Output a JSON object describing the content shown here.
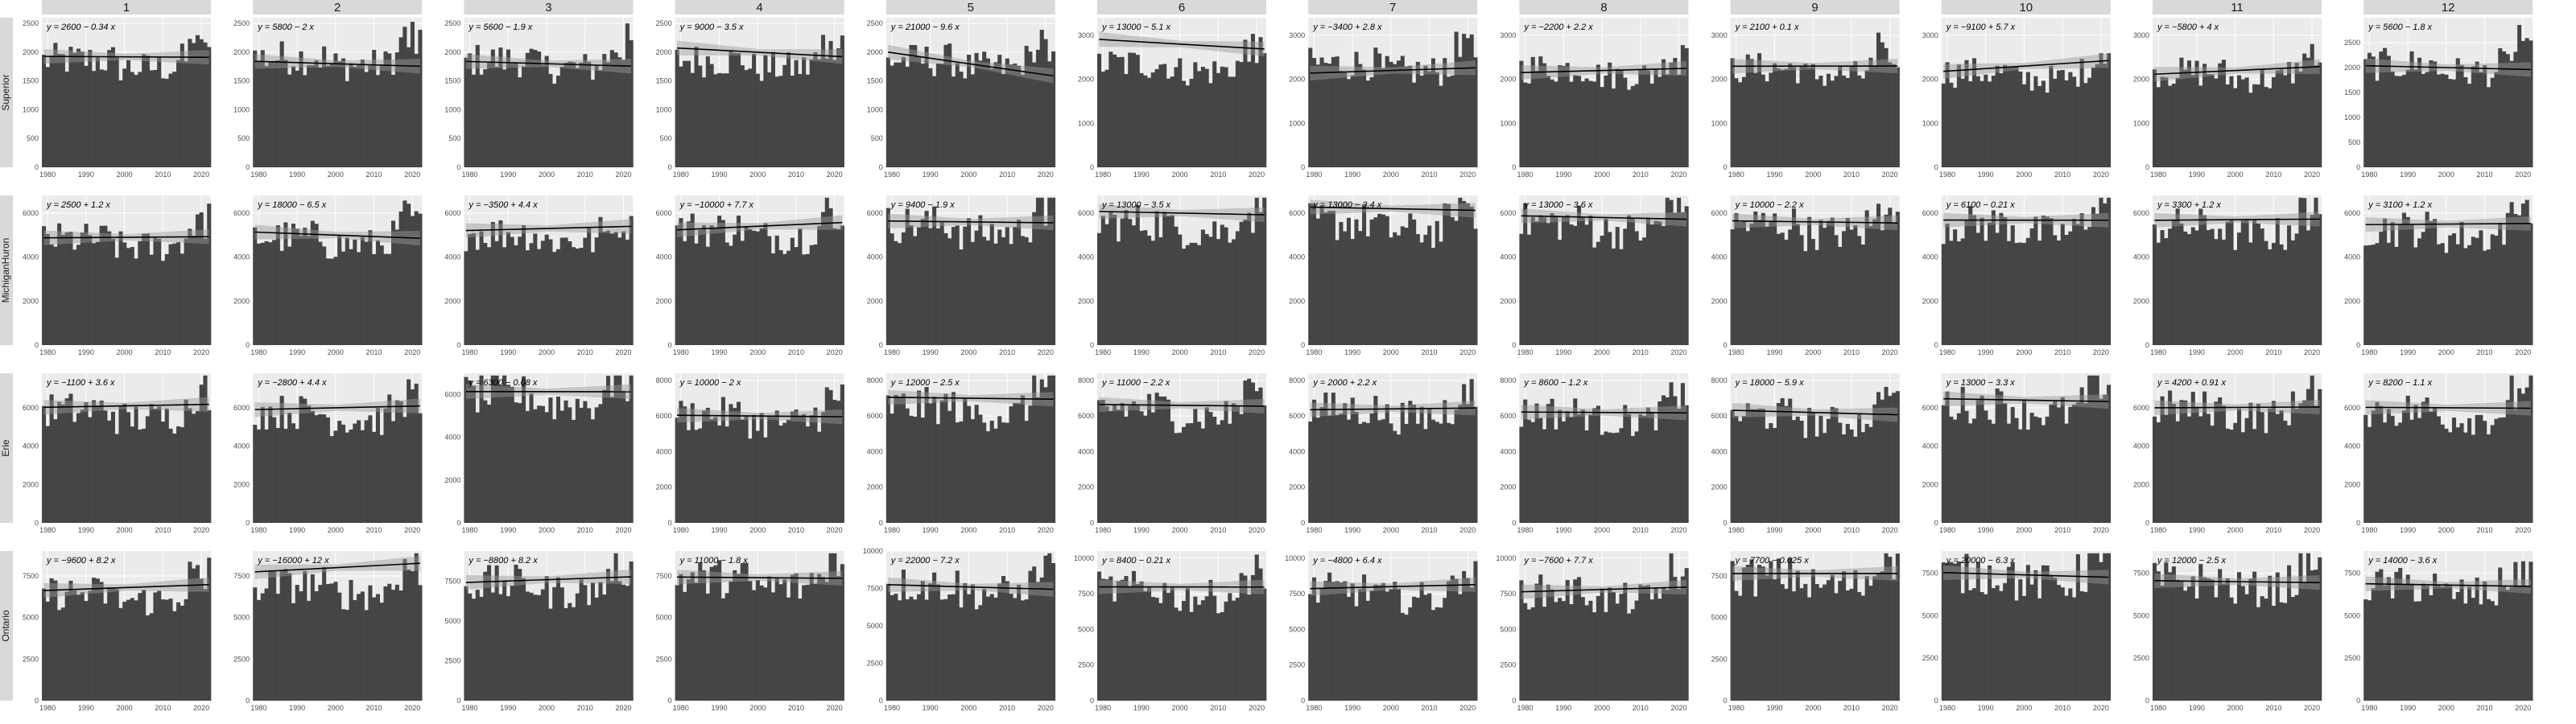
{
  "chart_data": {
    "type": "bar",
    "layout": "facet-grid",
    "column_strips": [
      "1",
      "2",
      "3",
      "4",
      "5",
      "6",
      "7",
      "8",
      "9",
      "10",
      "11",
      "12"
    ],
    "row_strips": [
      "Superior",
      "MichiganHuron",
      "Erie",
      "Ontario"
    ],
    "x_range": [
      1979,
      2022
    ],
    "x_ticks": [
      "1980",
      "1990",
      "2000",
      "2010",
      "2020"
    ],
    "grid": true,
    "colors": {
      "bar": "#454545",
      "panel": "#ebebeb",
      "grid": "#ffffff",
      "trend": "#000000",
      "band": "#999999",
      "strip": "#d9d9d9"
    },
    "panels": [
      [
        {
          "eq": "y = 2600 − 0.34 x",
          "ylim": [
            0,
            2600
          ],
          "yticks": [
            0,
            500,
            1000,
            1500,
            2000,
            2500
          ],
          "base": 1900
        },
        {
          "eq": "y = 5800 − 2 x",
          "ylim": [
            0,
            2600
          ],
          "yticks": [
            0,
            500,
            1000,
            1500,
            2000,
            2500
          ],
          "base": 1950
        },
        {
          "eq": "y = 5600 − 1.9 x",
          "ylim": [
            0,
            2600
          ],
          "yticks": [
            0,
            500,
            1000,
            1500,
            2000,
            2500
          ],
          "base": 1900
        },
        {
          "eq": "y = 9000 − 3.5 x",
          "ylim": [
            0,
            2600
          ],
          "yticks": [
            0,
            500,
            1000,
            1500,
            2000,
            2500
          ],
          "base": 1900
        },
        {
          "eq": "y = 21000 − 9.6 x",
          "ylim": [
            0,
            2600
          ],
          "yticks": [
            0,
            500,
            1000,
            1500,
            2000,
            2500
          ],
          "base": 1900
        },
        {
          "eq": "y = 13000 − 5.1 x",
          "ylim": [
            0,
            3400
          ],
          "yticks": [
            0,
            1000,
            2000,
            3000
          ],
          "base": 2400
        },
        {
          "eq": "y = −3400 + 2.8 x",
          "ylim": [
            0,
            3400
          ],
          "yticks": [
            0,
            1000,
            2000,
            3000
          ],
          "base": 2400
        },
        {
          "eq": "y = −2200 + 2.2 x",
          "ylim": [
            0,
            3400
          ],
          "yticks": [
            0,
            1000,
            2000,
            3000
          ],
          "base": 2300
        },
        {
          "eq": "y = 2100 + 0.1 x",
          "ylim": [
            0,
            3400
          ],
          "yticks": [
            0,
            1000,
            2000,
            3000
          ],
          "base": 2300
        },
        {
          "eq": "y = −9100 + 5.7 x",
          "ylim": [
            0,
            3400
          ],
          "yticks": [
            0,
            1000,
            2000,
            3000
          ],
          "base": 2200
        },
        {
          "eq": "y = −5800 + 4 x",
          "ylim": [
            0,
            3400
          ],
          "yticks": [
            0,
            1000,
            2000,
            3000
          ],
          "base": 2200
        },
        {
          "eq": "y = 5600 − 1.8 x",
          "ylim": [
            0,
            3000
          ],
          "yticks": [
            0,
            500,
            1000,
            1500,
            2000,
            2500
          ],
          "base": 2100
        }
      ],
      [
        {
          "eq": "y = 2500 + 1.2 x",
          "ylim": [
            0,
            6800
          ],
          "yticks": [
            0,
            2000,
            4000,
            6000
          ],
          "base": 4900
        },
        {
          "eq": "y = 18000 − 6.5 x",
          "ylim": [
            0,
            6800
          ],
          "yticks": [
            0,
            2000,
            4000,
            6000
          ],
          "base": 5000
        },
        {
          "eq": "y = −3500 + 4.4 x",
          "ylim": [
            0,
            6800
          ],
          "yticks": [
            0,
            2000,
            4000,
            6000
          ],
          "base": 5200
        },
        {
          "eq": "y = −10000 + 7.7 x",
          "ylim": [
            0,
            6800
          ],
          "yticks": [
            0,
            2000,
            4000,
            6000
          ],
          "base": 5400
        },
        {
          "eq": "y = 9400 − 1.9 x",
          "ylim": [
            0,
            6800
          ],
          "yticks": [
            0,
            2000,
            4000,
            6000
          ],
          "base": 5600
        },
        {
          "eq": "y = 13000 − 3.5 x",
          "ylim": [
            0,
            6800
          ],
          "yticks": [
            0,
            2000,
            4000,
            6000
          ],
          "base": 5700
        },
        {
          "eq": "y = 13000 − 3.4 x",
          "ylim": [
            0,
            6800
          ],
          "yticks": [
            0,
            2000,
            4000,
            6000
          ],
          "base": 5700
        },
        {
          "eq": "y = 13000 − 3.6 x",
          "ylim": [
            0,
            6800
          ],
          "yticks": [
            0,
            2000,
            4000,
            6000
          ],
          "base": 5700
        },
        {
          "eq": "y = 10000 − 2.2 x",
          "ylim": [
            0,
            6800
          ],
          "yticks": [
            0,
            2000,
            4000,
            6000
          ],
          "base": 5600
        },
        {
          "eq": "y = 6100 − 0.21 x",
          "ylim": [
            0,
            6800
          ],
          "yticks": [
            0,
            2000,
            4000,
            6000
          ],
          "base": 5600
        },
        {
          "eq": "y = 3300 + 1.2 x",
          "ylim": [
            0,
            6800
          ],
          "yticks": [
            0,
            2000,
            4000,
            6000
          ],
          "base": 5500
        },
        {
          "eq": "y = 3100 + 1.2 x",
          "ylim": [
            0,
            6800
          ],
          "yticks": [
            0,
            2000,
            4000,
            6000
          ],
          "base": 5400
        }
      ],
      [
        {
          "eq": "y = −1100 + 3.6 x",
          "ylim": [
            0,
            7800
          ],
          "yticks": [
            0,
            2000,
            4000,
            6000
          ],
          "base": 6000
        },
        {
          "eq": "y = −2800 + 4.4 x",
          "ylim": [
            0,
            7800
          ],
          "yticks": [
            0,
            2000,
            4000,
            6000
          ],
          "base": 5900
        },
        {
          "eq": "y = 6300 − 0.08 x",
          "ylim": [
            0,
            7000
          ],
          "yticks": [
            0,
            2000,
            4000,
            6000
          ],
          "base": 6100
        },
        {
          "eq": "y = 10000 − 2 x",
          "ylim": [
            0,
            8400
          ],
          "yticks": [
            0,
            2000,
            4000,
            6000,
            8000
          ],
          "base": 6200
        },
        {
          "eq": "y = 12000 − 2.5 x",
          "ylim": [
            0,
            8400
          ],
          "yticks": [
            0,
            2000,
            4000,
            6000,
            8000
          ],
          "base": 6700
        },
        {
          "eq": "y = 11000 − 2.2 x",
          "ylim": [
            0,
            8400
          ],
          "yticks": [
            0,
            2000,
            4000,
            6000,
            8000
          ],
          "base": 6600
        },
        {
          "eq": "y = 2000 + 2.2 x",
          "ylim": [
            0,
            8400
          ],
          "yticks": [
            0,
            2000,
            4000,
            6000,
            8000
          ],
          "base": 6500
        },
        {
          "eq": "y = 8600 − 1.2 x",
          "ylim": [
            0,
            8400
          ],
          "yticks": [
            0,
            2000,
            4000,
            6000,
            8000
          ],
          "base": 6300
        },
        {
          "eq": "y = 18000 − 5.9 x",
          "ylim": [
            0,
            8400
          ],
          "yticks": [
            0,
            2000,
            4000,
            6000,
            8000
          ],
          "base": 6200
        },
        {
          "eq": "y = 13000 − 3.3 x",
          "ylim": [
            0,
            7800
          ],
          "yticks": [
            0,
            2000,
            4000,
            6000
          ],
          "base": 6300
        },
        {
          "eq": "y = 4200 + 0.91 x",
          "ylim": [
            0,
            7800
          ],
          "yticks": [
            0,
            2000,
            4000,
            6000
          ],
          "base": 6100
        },
        {
          "eq": "y = 8200 − 1.1 x",
          "ylim": [
            0,
            7800
          ],
          "yticks": [
            0,
            2000,
            4000,
            6000
          ],
          "base": 6000
        }
      ],
      [
        {
          "eq": "y = −9600 + 8.2 x",
          "ylim": [
            0,
            9000
          ],
          "yticks": [
            0,
            2500,
            5000,
            7500
          ],
          "base": 6600
        },
        {
          "eq": "y = −16000 + 12 x",
          "ylim": [
            0,
            9000
          ],
          "yticks": [
            0,
            2500,
            5000,
            7500
          ],
          "base": 7100
        },
        {
          "eq": "y = −8800 + 8.2 x",
          "ylim": [
            0,
            9400
          ],
          "yticks": [
            0,
            2500,
            5000,
            7500
          ],
          "base": 7500
        },
        {
          "eq": "y = 11000 − 1.8 x",
          "ylim": [
            0,
            9000
          ],
          "yticks": [
            0,
            2500,
            5000,
            7500
          ],
          "base": 7500
        },
        {
          "eq": "y = 22000 − 7.2 x",
          "ylim": [
            0,
            10000
          ],
          "yticks": [
            0,
            2500,
            5000,
            7500,
            10000
          ],
          "base": 7900
        },
        {
          "eq": "y = 8400 − 0.21 x",
          "ylim": [
            0,
            10500
          ],
          "yticks": [
            0,
            2500,
            5000,
            7500,
            10000
          ],
          "base": 8000
        },
        {
          "eq": "y = −4800 + 6.4 x",
          "ylim": [
            0,
            10500
          ],
          "yticks": [
            0,
            2500,
            5000,
            7500,
            10000
          ],
          "base": 7900
        },
        {
          "eq": "y = −7600 + 7.7 x",
          "ylim": [
            0,
            10500
          ],
          "yticks": [
            0,
            2500,
            5000,
            7500,
            10000
          ],
          "base": 7800
        },
        {
          "eq": "y = 7700 − 0.025 x",
          "ylim": [
            0,
            9000
          ],
          "yticks": [
            0,
            2500,
            5000,
            7500
          ],
          "base": 7600
        },
        {
          "eq": "y = 20000 − 6.3 x",
          "ylim": [
            0,
            8800
          ],
          "yticks": [
            0,
            2500,
            5000,
            7500
          ],
          "base": 7600
        },
        {
          "eq": "y = 12000 − 2.5 x",
          "ylim": [
            0,
            8800
          ],
          "yticks": [
            0,
            2500,
            5000,
            7500
          ],
          "base": 7200
        },
        {
          "eq": "y = 14000 − 3.6 x",
          "ylim": [
            0,
            8800
          ],
          "yticks": [
            0,
            2500,
            5000,
            7500
          ],
          "base": 6900
        }
      ]
    ]
  }
}
